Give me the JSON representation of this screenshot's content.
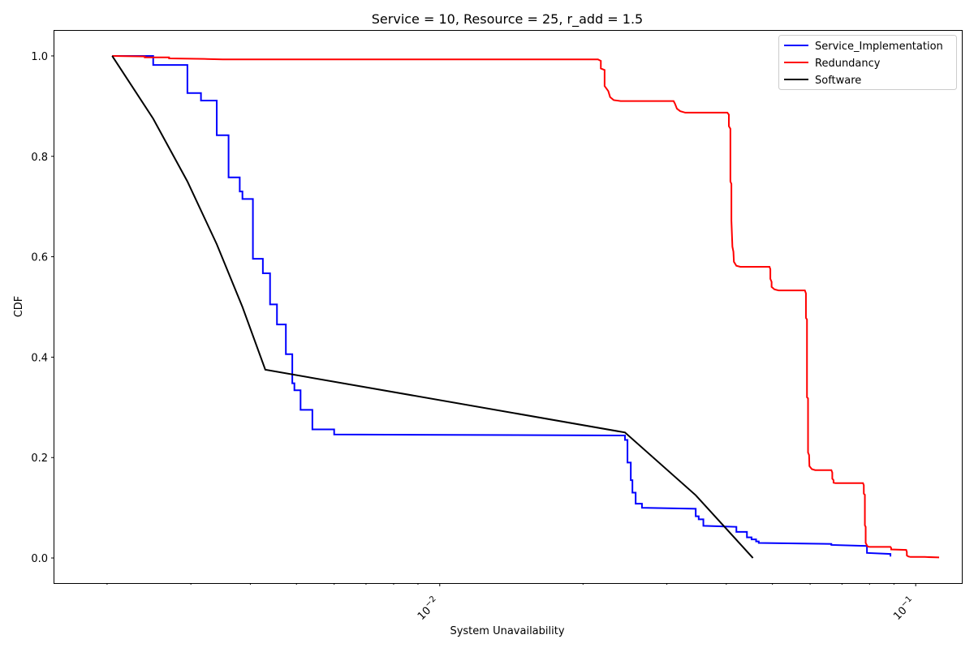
{
  "chart_data": {
    "type": "line",
    "title": "Service = 10, Resource = 25, r_add = 1.5",
    "xlabel": "System Unavailability",
    "ylabel": "CDF",
    "x_scale": "log",
    "xlim": [
      0.00155,
      0.125
    ],
    "ylim": [
      -0.05,
      1.05
    ],
    "x_ticks": [
      {
        "value": 0.01,
        "base": "10",
        "exp": "−2"
      },
      {
        "value": 0.1,
        "base": "10",
        "exp": "−1"
      }
    ],
    "y_ticks": [
      {
        "value": 0.0,
        "label": "0.0"
      },
      {
        "value": 0.2,
        "label": "0.2"
      },
      {
        "value": 0.4,
        "label": "0.4"
      },
      {
        "value": 0.6,
        "label": "0.6"
      },
      {
        "value": 0.8,
        "label": "0.8"
      },
      {
        "value": 1.0,
        "label": "1.0"
      }
    ],
    "grid": false,
    "legend_position": "top-right",
    "series": [
      {
        "name": "Service_Implementation",
        "color": "#0000ff",
        "points": [
          [
            0.00205,
            1.0
          ],
          [
            0.0025,
            1.0
          ],
          [
            0.0025,
            0.982
          ],
          [
            0.00295,
            0.982
          ],
          [
            0.00295,
            0.926
          ],
          [
            0.00315,
            0.926
          ],
          [
            0.00315,
            0.911
          ],
          [
            0.0034,
            0.911
          ],
          [
            0.0034,
            0.842
          ],
          [
            0.0036,
            0.842
          ],
          [
            0.0036,
            0.758
          ],
          [
            0.0038,
            0.758
          ],
          [
            0.0038,
            0.73
          ],
          [
            0.00385,
            0.73
          ],
          [
            0.00385,
            0.715
          ],
          [
            0.00405,
            0.715
          ],
          [
            0.00405,
            0.596
          ],
          [
            0.00425,
            0.596
          ],
          [
            0.00425,
            0.567
          ],
          [
            0.0044,
            0.567
          ],
          [
            0.0044,
            0.505
          ],
          [
            0.00455,
            0.505
          ],
          [
            0.00455,
            0.465
          ],
          [
            0.00475,
            0.465
          ],
          [
            0.00475,
            0.406
          ],
          [
            0.0049,
            0.406
          ],
          [
            0.0049,
            0.348
          ],
          [
            0.00495,
            0.348
          ],
          [
            0.00495,
            0.334
          ],
          [
            0.0051,
            0.334
          ],
          [
            0.0051,
            0.295
          ],
          [
            0.0054,
            0.295
          ],
          [
            0.0054,
            0.256
          ],
          [
            0.006,
            0.256
          ],
          [
            0.006,
            0.246
          ],
          [
            0.0245,
            0.244
          ],
          [
            0.0245,
            0.235
          ],
          [
            0.0248,
            0.235
          ],
          [
            0.0248,
            0.19
          ],
          [
            0.0252,
            0.19
          ],
          [
            0.0252,
            0.155
          ],
          [
            0.0254,
            0.155
          ],
          [
            0.0254,
            0.13
          ],
          [
            0.0258,
            0.13
          ],
          [
            0.0258,
            0.108
          ],
          [
            0.0266,
            0.108
          ],
          [
            0.0266,
            0.1
          ],
          [
            0.0345,
            0.098
          ],
          [
            0.0345,
            0.083
          ],
          [
            0.035,
            0.083
          ],
          [
            0.035,
            0.077
          ],
          [
            0.0358,
            0.077
          ],
          [
            0.0358,
            0.064
          ],
          [
            0.042,
            0.062
          ],
          [
            0.042,
            0.052
          ],
          [
            0.0442,
            0.052
          ],
          [
            0.0442,
            0.041
          ],
          [
            0.0452,
            0.041
          ],
          [
            0.0452,
            0.037
          ],
          [
            0.0462,
            0.037
          ],
          [
            0.0462,
            0.033
          ],
          [
            0.0468,
            0.033
          ],
          [
            0.0468,
            0.03
          ],
          [
            0.0665,
            0.028
          ],
          [
            0.0665,
            0.026
          ],
          [
            0.079,
            0.024
          ],
          [
            0.079,
            0.01
          ],
          [
            0.0885,
            0.008
          ],
          [
            0.0885,
            0.003
          ]
        ]
      },
      {
        "name": "Redundancy",
        "color": "#ff0000",
        "points": [
          [
            0.00205,
            1.0
          ],
          [
            0.0024,
            0.999
          ],
          [
            0.0024,
            0.997
          ],
          [
            0.0027,
            0.997
          ],
          [
            0.0027,
            0.995
          ],
          [
            0.0032,
            0.994
          ],
          [
            0.0035,
            0.993
          ],
          [
            0.0215,
            0.993
          ],
          [
            0.0218,
            0.99
          ],
          [
            0.0218,
            0.975
          ],
          [
            0.0222,
            0.972
          ],
          [
            0.0222,
            0.94
          ],
          [
            0.0226,
            0.93
          ],
          [
            0.0228,
            0.918
          ],
          [
            0.0232,
            0.912
          ],
          [
            0.024,
            0.91
          ],
          [
            0.031,
            0.91
          ],
          [
            0.0312,
            0.905
          ],
          [
            0.0315,
            0.895
          ],
          [
            0.032,
            0.89
          ],
          [
            0.0328,
            0.887
          ],
          [
            0.0402,
            0.887
          ],
          [
            0.0405,
            0.883
          ],
          [
            0.0405,
            0.86
          ],
          [
            0.0408,
            0.855
          ],
          [
            0.0408,
            0.75
          ],
          [
            0.041,
            0.745
          ],
          [
            0.041,
            0.672
          ],
          [
            0.0412,
            0.62
          ],
          [
            0.0414,
            0.61
          ],
          [
            0.0415,
            0.59
          ],
          [
            0.042,
            0.582
          ],
          [
            0.0428,
            0.58
          ],
          [
            0.0493,
            0.58
          ],
          [
            0.0495,
            0.575
          ],
          [
            0.0495,
            0.556
          ],
          [
            0.0498,
            0.55
          ],
          [
            0.0498,
            0.54
          ],
          [
            0.0505,
            0.535
          ],
          [
            0.0515,
            0.533
          ],
          [
            0.0585,
            0.533
          ],
          [
            0.0588,
            0.527
          ],
          [
            0.0588,
            0.478
          ],
          [
            0.0591,
            0.475
          ],
          [
            0.0591,
            0.32
          ],
          [
            0.0594,
            0.318
          ],
          [
            0.0594,
            0.21
          ],
          [
            0.0597,
            0.205
          ],
          [
            0.0598,
            0.183
          ],
          [
            0.0605,
            0.177
          ],
          [
            0.0615,
            0.175
          ],
          [
            0.0665,
            0.175
          ],
          [
            0.0668,
            0.17
          ],
          [
            0.0668,
            0.158
          ],
          [
            0.0672,
            0.155
          ],
          [
            0.0672,
            0.15
          ],
          [
            0.0678,
            0.149
          ],
          [
            0.0775,
            0.149
          ],
          [
            0.0778,
            0.145
          ],
          [
            0.0778,
            0.128
          ],
          [
            0.0782,
            0.126
          ],
          [
            0.0782,
            0.065
          ],
          [
            0.0785,
            0.062
          ],
          [
            0.0785,
            0.03
          ],
          [
            0.0792,
            0.023
          ],
          [
            0.08,
            0.022
          ],
          [
            0.0885,
            0.022
          ],
          [
            0.0888,
            0.02
          ],
          [
            0.0888,
            0.017
          ],
          [
            0.0955,
            0.016
          ],
          [
            0.0958,
            0.012
          ],
          [
            0.0958,
            0.005
          ],
          [
            0.0965,
            0.003
          ],
          [
            0.0975,
            0.002
          ],
          [
            0.1045,
            0.002
          ],
          [
            0.112,
            0.001
          ]
        ]
      },
      {
        "name": "Software",
        "color": "#000000",
        "points": [
          [
            0.00205,
            1.0
          ],
          [
            0.0025,
            0.875
          ],
          [
            0.00295,
            0.75
          ],
          [
            0.0034,
            0.625
          ],
          [
            0.00385,
            0.5
          ],
          [
            0.0043,
            0.375
          ],
          [
            0.0245,
            0.25
          ],
          [
            0.0345,
            0.125
          ],
          [
            0.0455,
            0.0
          ]
        ]
      }
    ]
  }
}
